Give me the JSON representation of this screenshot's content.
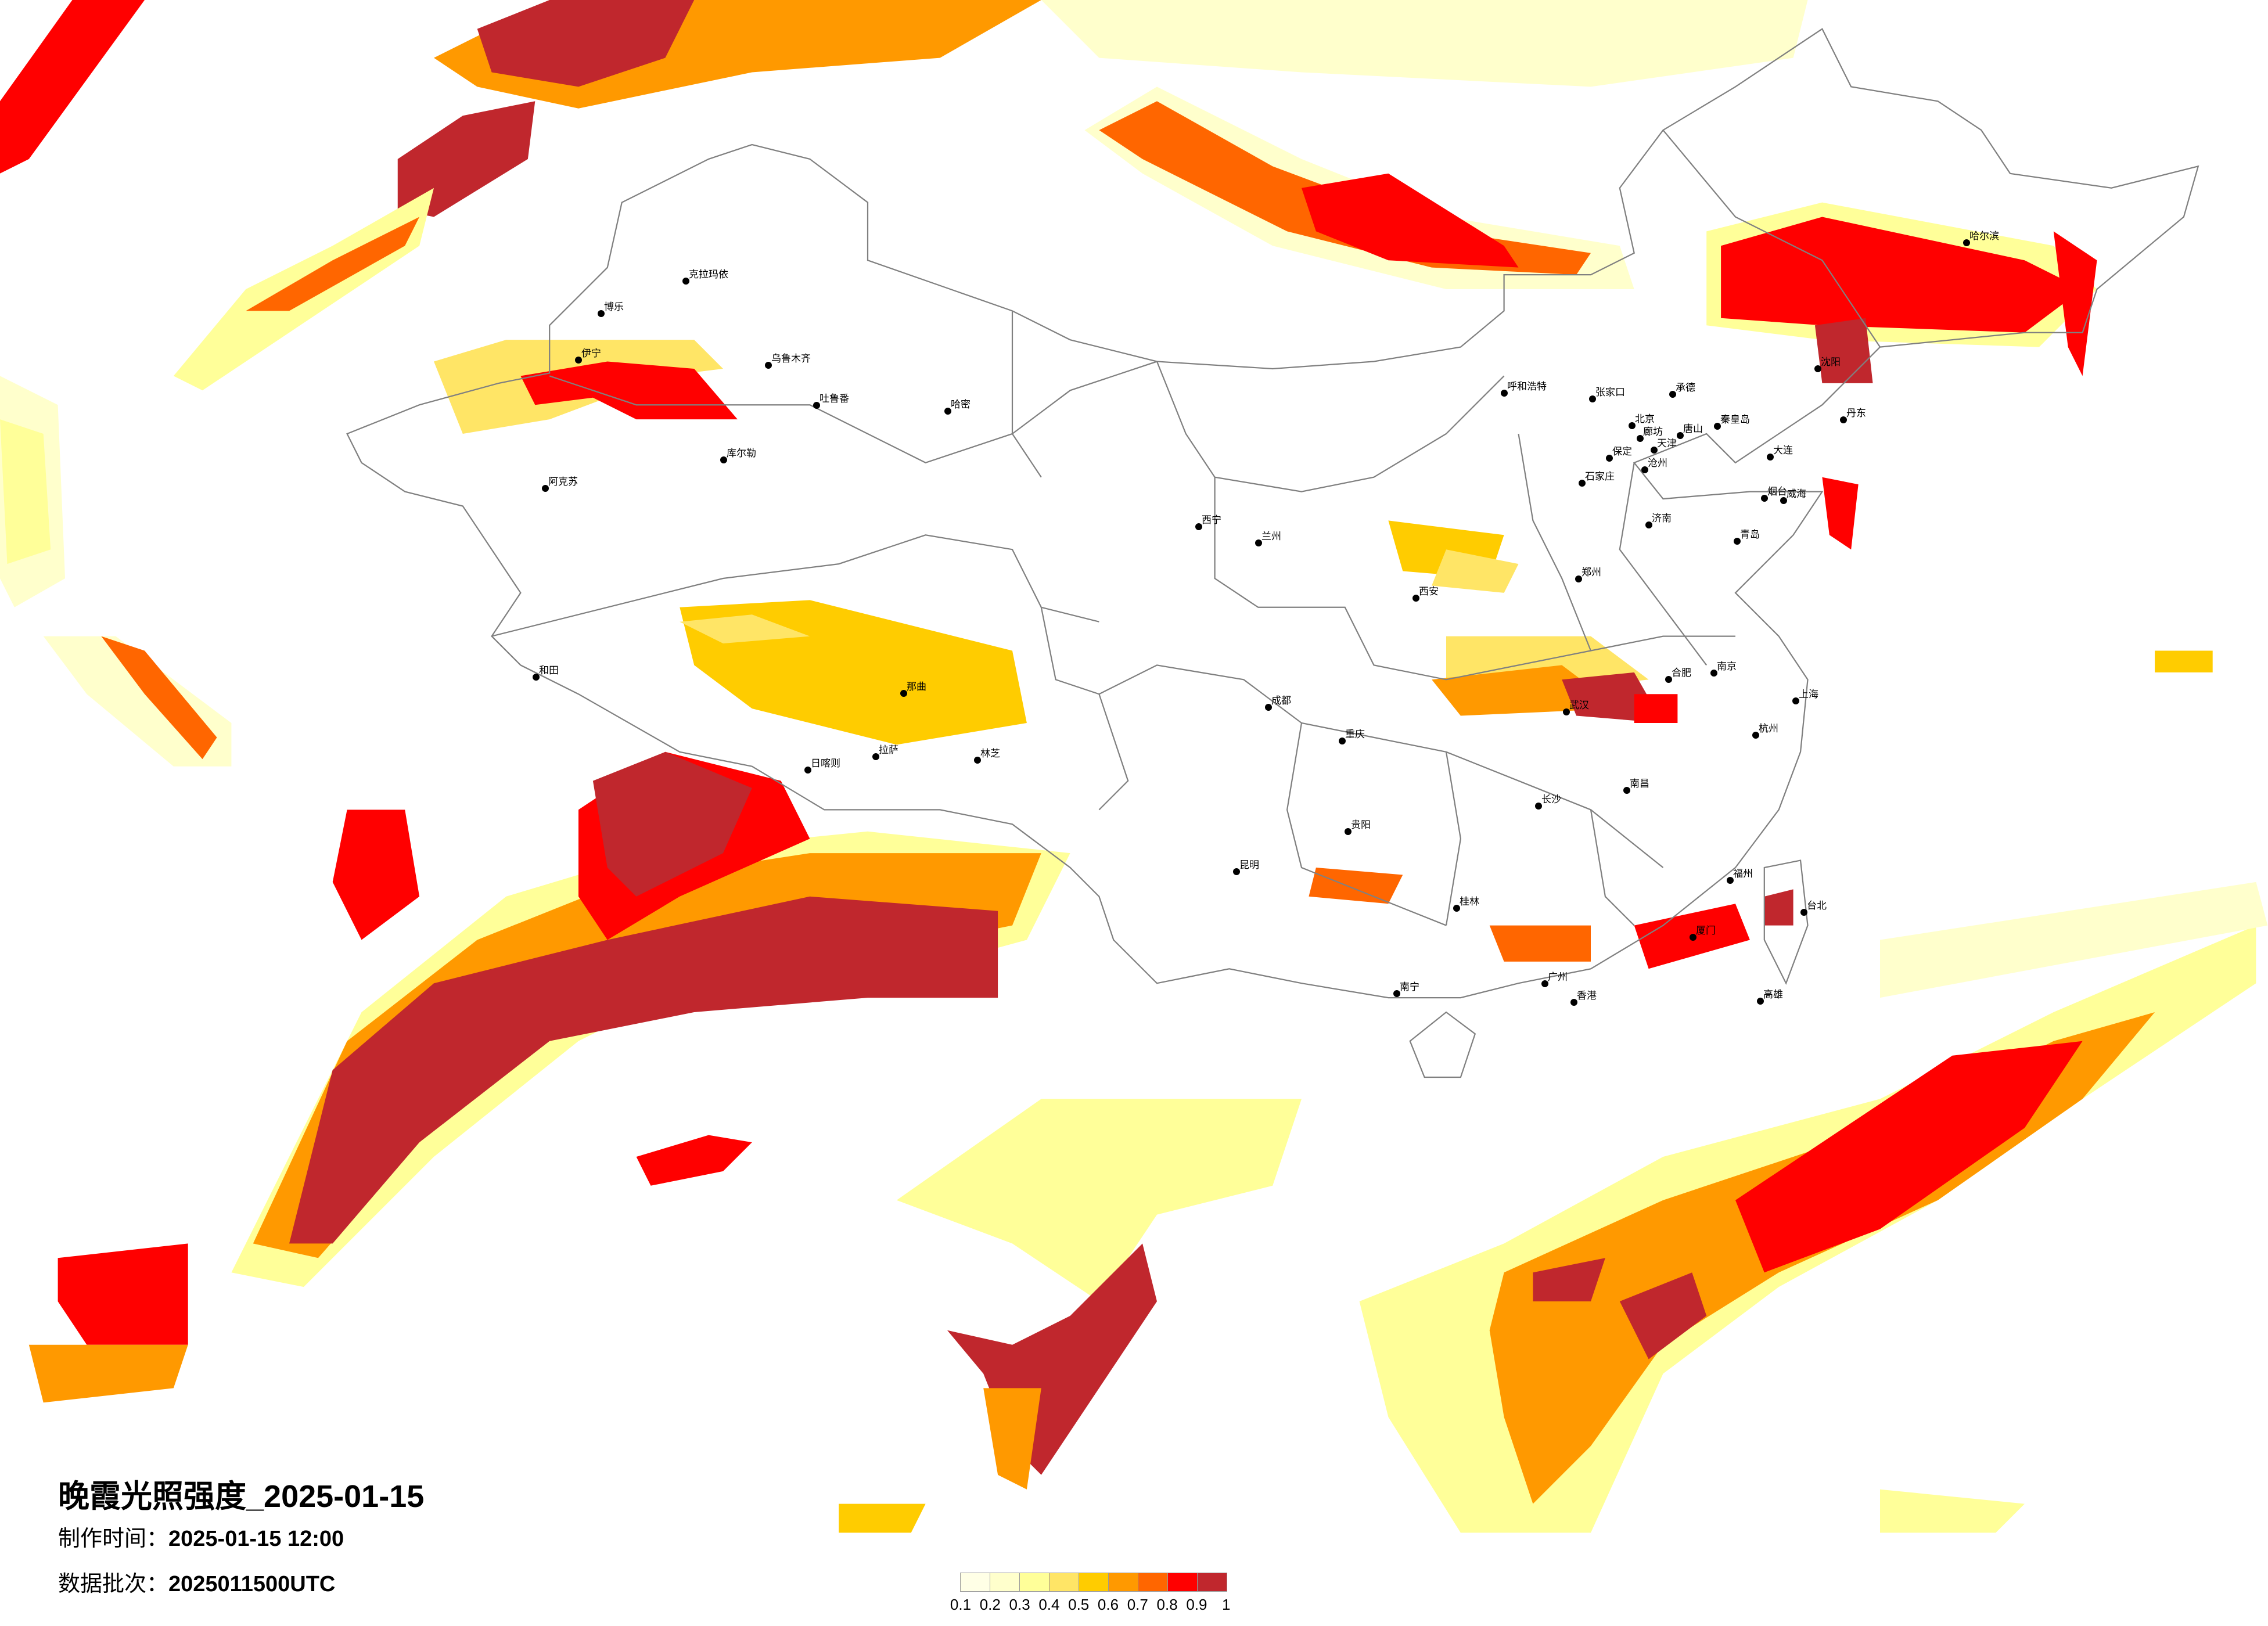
{
  "title": "晚霞光照强度_2025-01-15",
  "production_time": {
    "label": "制作时间：",
    "value": "2025-01-15 12:00"
  },
  "data_batch": {
    "label": "数据批次：",
    "value": "2025011500UTC"
  },
  "legend": {
    "ticks": [
      "0.1",
      "0.2",
      "0.3",
      "0.4",
      "0.5",
      "0.6",
      "0.7",
      "0.8",
      "0.9",
      "1"
    ],
    "colors": [
      "#ffffe6",
      "#ffffcc",
      "#ffff99",
      "#ffe566",
      "#ffcc00",
      "#ff9900",
      "#ff6600",
      "#ff0000",
      "#c0272d"
    ]
  },
  "cities": [
    "克拉玛依",
    "博乐",
    "伊宁",
    "乌鲁木齐",
    "吐鲁番",
    "哈密",
    "库尔勒",
    "阿克苏",
    "和田",
    "那曲",
    "拉萨",
    "日喀则",
    "林芝",
    "西宁",
    "兰州",
    "西安",
    "成都",
    "重庆",
    "贵阳",
    "昆明",
    "呼和浩特",
    "张家口",
    "承德",
    "北京",
    "廊坊",
    "天津",
    "唐山",
    "秦皇岛",
    "保定",
    "石家庄",
    "沧州",
    "济南",
    "青岛",
    "烟台",
    "威海",
    "沈阳",
    "大连",
    "丹东",
    "哈尔滨",
    "郑州",
    "合肥",
    "南京",
    "上海",
    "杭州",
    "武汉",
    "长沙",
    "南昌",
    "福州",
    "厦门",
    "广州",
    "香港",
    "桂林",
    "南宁",
    "台北",
    "高雄"
  ]
}
